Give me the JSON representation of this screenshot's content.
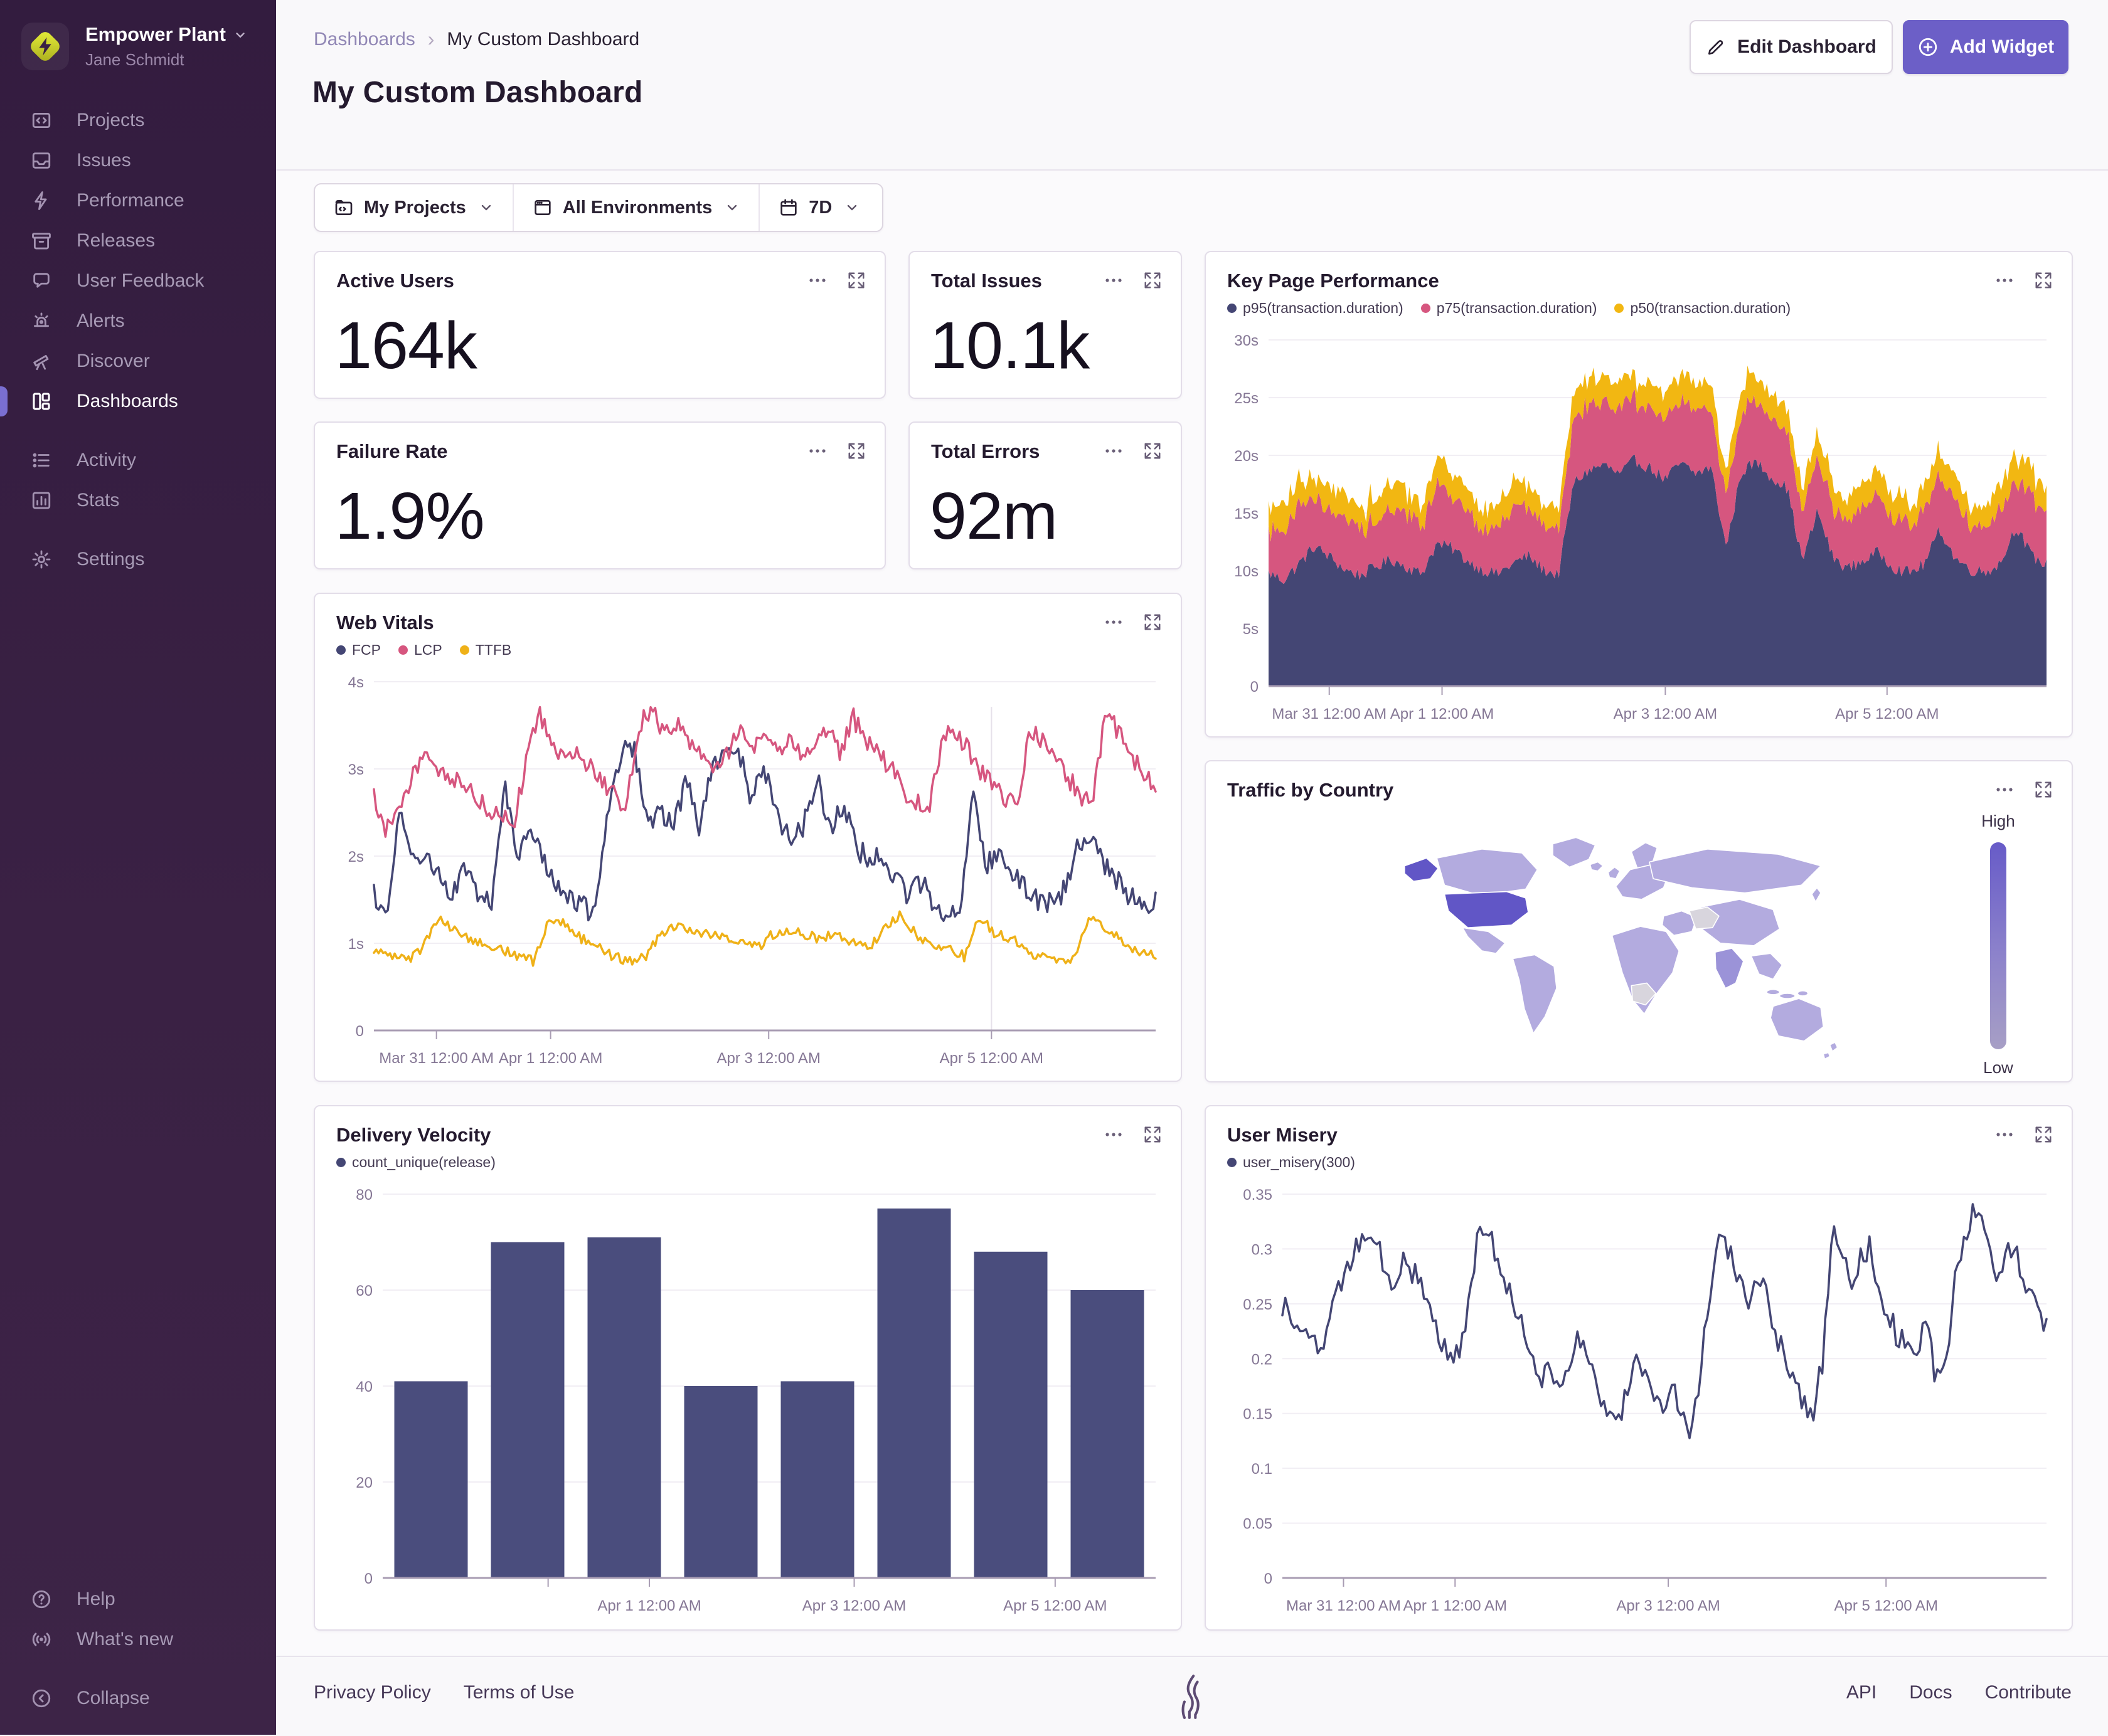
{
  "sidebar": {
    "org": "Empower Plant",
    "user": "Jane Schmidt",
    "primary": [
      {
        "id": "projects",
        "label": "Projects"
      },
      {
        "id": "issues",
        "label": "Issues"
      },
      {
        "id": "performance",
        "label": "Performance"
      },
      {
        "id": "releases",
        "label": "Releases"
      },
      {
        "id": "user-feedback",
        "label": "User Feedback"
      },
      {
        "id": "alerts",
        "label": "Alerts"
      },
      {
        "id": "discover",
        "label": "Discover"
      },
      {
        "id": "dashboards",
        "label": "Dashboards"
      }
    ],
    "secondary": [
      {
        "id": "activity",
        "label": "Activity"
      },
      {
        "id": "stats",
        "label": "Stats"
      }
    ],
    "tertiary": [
      {
        "id": "settings",
        "label": "Settings"
      }
    ],
    "footer": [
      {
        "id": "help",
        "label": "Help"
      },
      {
        "id": "whats-new",
        "label": "What's new"
      },
      {
        "id": "collapse",
        "label": "Collapse"
      }
    ]
  },
  "header": {
    "breadcrumb": [
      "Dashboards",
      "My Custom Dashboard"
    ],
    "title": "My Custom Dashboard",
    "edit_button": "Edit Dashboard",
    "add_button": "Add Widget"
  },
  "filters": {
    "projects": "My Projects",
    "environments": "All Environments",
    "period": "7D"
  },
  "cards": {
    "active_users": {
      "title": "Active Users",
      "value": "164k"
    },
    "total_issues": {
      "title": "Total Issues",
      "value": "10.1k"
    },
    "failure_rate": {
      "title": "Failure Rate",
      "value": "1.9%"
    },
    "total_errors": {
      "title": "Total Errors",
      "value": "92m"
    },
    "key_page_performance": {
      "title": "Key Page Performance"
    },
    "web_vitals": {
      "title": "Web Vitals"
    },
    "traffic_by_country": {
      "title": "Traffic by Country",
      "legend_high": "High",
      "legend_low": "Low"
    },
    "delivery_velocity": {
      "title": "Delivery Velocity"
    },
    "user_misery": {
      "title": "User Misery"
    }
  },
  "footer": {
    "left": [
      "Privacy Policy",
      "Terms of Use"
    ],
    "right": [
      "API",
      "Docs",
      "Contribute"
    ]
  },
  "colors": {
    "accent": "#6c5fc7",
    "series_navy": "#444674",
    "series_pink": "#d6567f",
    "series_yellow": "#efb118",
    "map_country": "#b3abdf",
    "map_country_high": "#6156c6",
    "map_no_data": "#d8d5dd"
  },
  "chart_data": [
    {
      "id": "key_page_performance",
      "type": "area",
      "stacked": true,
      "title": "Key Page Performance",
      "ylim": [
        0,
        30
      ],
      "grid": true,
      "legend_position": "top",
      "y_ticks": [
        {
          "v": 30,
          "label": "30s"
        },
        {
          "v": 25,
          "label": "25s"
        },
        {
          "v": 20,
          "label": "20s"
        },
        {
          "v": 15,
          "label": "15s"
        },
        {
          "v": 10,
          "label": "10s"
        },
        {
          "v": 5,
          "label": "5s"
        },
        {
          "v": 0,
          "label": "0"
        }
      ],
      "x_ticks": [
        {
          "pos": 0.078,
          "label": "Mar 31 12:00 AM"
        },
        {
          "pos": 0.223,
          "label": "Apr 1 12:00 AM"
        },
        {
          "pos": 0.51,
          "label": "Apr 3 12:00 AM"
        },
        {
          "pos": 0.795,
          "label": "Apr 5 12:00 AM"
        }
      ],
      "gutter": 70,
      "samples": 360,
      "series": [
        {
          "name": "p95(transaction.duration)",
          "color": "#444674",
          "jitter": 0.55,
          "values": [
            9.8,
            9.2,
            10.6,
            12.1,
            11.2,
            10.1,
            9.6,
            10.3,
            11.0,
            10.4,
            9.7,
            12.3,
            12.0,
            10.9,
            10.1,
            9.7,
            10.6,
            11.3,
            10.1,
            9.6,
            17.6,
            18.7,
            19.2,
            18.3,
            19.6,
            18.9,
            17.9,
            19.3,
            18.4,
            19.0,
            12.0,
            18.6,
            19.4,
            18.1,
            17.2,
            10.8,
            15.2,
            11.1,
            10.2,
            10.9,
            11.6,
            10.3,
            9.8,
            10.6,
            13.6,
            11.1,
            10.1,
            9.9,
            10.7,
            13.9,
            11.3,
            10.5
          ]
        },
        {
          "name": "p75(transaction.duration)",
          "color": "#d6567f",
          "jitter": 0.6,
          "values": [
            3.6,
            4.4,
            5.1,
            4.2,
            3.8,
            4.6,
            4.1,
            3.7,
            4.3,
            4.8,
            4.0,
            5.2,
            4.6,
            4.1,
            3.8,
            4.4,
            4.9,
            4.2,
            3.9,
            4.1,
            5.4,
            5.8,
            5.2,
            5.6,
            5.1,
            5.5,
            5.0,
            5.3,
            5.7,
            5.2,
            4.2,
            5.5,
            5.0,
            5.4,
            4.8,
            4.4,
            4.9,
            4.2,
            3.9,
            4.5,
            5.0,
            4.3,
            4.0,
            4.6,
            4.4,
            4.8,
            4.1,
            3.9,
            4.6,
            4.3,
            4.9,
            4.4
          ]
        },
        {
          "name": "p50(transaction.duration)",
          "color": "#f2b712",
          "jitter": 0.5,
          "values": [
            1.9,
            2.3,
            2.1,
            1.8,
            2.2,
            2.0,
            1.8,
            2.1,
            2.4,
            2.0,
            1.8,
            2.2,
            2.1,
            1.9,
            1.8,
            2.1,
            2.3,
            2.0,
            1.8,
            1.9,
            2.3,
            2.5,
            2.2,
            2.4,
            2.1,
            2.3,
            2.2,
            2.4,
            2.1,
            2.3,
            1.9,
            2.2,
            2.4,
            2.1,
            2.0,
            2.0,
            2.3,
            1.9,
            1.8,
            2.1,
            2.3,
            2.0,
            1.8,
            2.1,
            2.2,
            2.0,
            1.8,
            1.9,
            2.2,
            2.4,
            2.1,
            1.9
          ]
        }
      ]
    },
    {
      "id": "web_vitals",
      "type": "line",
      "title": "Web Vitals",
      "ylim": [
        0,
        4
      ],
      "grid": true,
      "crosshair": 0.79,
      "y_ticks": [
        {
          "v": 4,
          "label": "4s"
        },
        {
          "v": 3,
          "label": "3s"
        },
        {
          "v": 2,
          "label": "2s"
        },
        {
          "v": 1,
          "label": "1s"
        },
        {
          "v": 0,
          "label": "0"
        }
      ],
      "x_ticks": [
        {
          "pos": 0.08,
          "label": "Mar 31 12:00 AM"
        },
        {
          "pos": 0.226,
          "label": "Apr 1 12:00 AM"
        },
        {
          "pos": 0.505,
          "label": "Apr 3 12:00 AM"
        },
        {
          "pos": 0.79,
          "label": "Apr 5 12:00 AM"
        }
      ],
      "gutter": 64,
      "samples": 340,
      "series": [
        {
          "name": "FCP",
          "color": "#444674",
          "jitter": 0.13,
          "values": [
            1.55,
            1.35,
            2.55,
            1.9,
            2.05,
            1.75,
            1.6,
            1.85,
            1.55,
            1.45,
            2.85,
            2.05,
            2.25,
            1.95,
            1.7,
            1.5,
            1.42,
            1.35,
            2.6,
            3.2,
            3.18,
            2.4,
            2.5,
            2.35,
            2.9,
            2.3,
            3.1,
            3.18,
            3.2,
            2.65,
            3.0,
            2.45,
            2.2,
            2.35,
            2.9,
            2.25,
            2.6,
            2.1,
            1.95,
            2.05,
            1.75,
            1.55,
            1.7,
            1.45,
            1.35,
            1.4,
            2.8,
            1.9,
            2.1,
            1.8,
            1.62,
            1.5,
            1.45,
            1.6,
            2.1,
            2.3,
            1.9,
            1.72,
            1.55,
            1.45,
            1.5
          ]
        },
        {
          "name": "LCP",
          "color": "#d6567f",
          "jitter": 0.12,
          "values": [
            2.65,
            2.3,
            2.55,
            2.9,
            3.2,
            3.05,
            2.8,
            2.9,
            2.7,
            2.55,
            2.45,
            2.35,
            3.0,
            3.65,
            3.3,
            3.15,
            3.2,
            3.05,
            2.9,
            2.7,
            2.55,
            3.5,
            3.7,
            3.4,
            3.55,
            3.3,
            3.15,
            2.95,
            3.2,
            3.4,
            3.25,
            3.3,
            3.2,
            3.35,
            3.1,
            3.25,
            3.45,
            3.2,
            3.6,
            3.3,
            3.15,
            3.0,
            2.75,
            2.6,
            2.55,
            3.3,
            3.45,
            3.25,
            3.0,
            2.8,
            2.65,
            2.55,
            3.4,
            3.35,
            3.15,
            2.9,
            2.7,
            2.6,
            3.6,
            3.45,
            3.2,
            2.95,
            2.85
          ]
        },
        {
          "name": "TTFB",
          "color": "#efb118",
          "jitter": 0.06,
          "values": [
            0.95,
            0.85,
            0.8,
            0.95,
            1.3,
            1.15,
            1.05,
            1.0,
            0.92,
            0.85,
            0.8,
            1.3,
            1.22,
            1.05,
            0.95,
            0.85,
            0.8,
            0.85,
            1.1,
            1.2,
            1.15,
            1.1,
            1.05,
            1.0,
            0.95,
            1.1,
            1.15,
            1.1,
            1.05,
            1.1,
            1.0,
            0.95,
            1.15,
            1.35,
            1.1,
            1.0,
            0.95,
            0.85,
            1.3,
            1.1,
            1.05,
            0.9,
            0.85,
            0.8,
            0.85,
            1.35,
            1.15,
            1.0,
            0.9,
            0.85
          ]
        }
      ]
    },
    {
      "id": "delivery_velocity",
      "type": "bar",
      "title": "Delivery Velocity",
      "ylim": [
        0,
        80
      ],
      "grid": true,
      "bar_color": "#4a4d7d",
      "categories": [
        "",
        "",
        "",
        "",
        "",
        "",
        "",
        ""
      ],
      "values": [
        41,
        70,
        71,
        40,
        41,
        77,
        68,
        60
      ],
      "y_ticks": [
        {
          "v": 80,
          "label": "80"
        },
        {
          "v": 60,
          "label": "60"
        },
        {
          "v": 40,
          "label": "40"
        },
        {
          "v": 20,
          "label": "20"
        },
        {
          "v": 0,
          "label": "0"
        }
      ],
      "x_ticks": [
        {
          "pos": 0.214,
          "label": ""
        },
        {
          "pos": 0.345,
          "label": "Apr 1 12:00 AM"
        },
        {
          "pos": 0.61,
          "label": "Apr 3 12:00 AM"
        },
        {
          "pos": 0.87,
          "label": "Apr 5 12:00 AM"
        }
      ],
      "gutter": 78,
      "series": [
        {
          "name": "count_unique(release)",
          "color": "#444674"
        }
      ]
    },
    {
      "id": "user_misery",
      "type": "line",
      "title": "User Misery",
      "ylim": [
        0,
        0.35
      ],
      "grid": true,
      "y_ticks": [
        {
          "v": 0.35,
          "label": "0.35"
        },
        {
          "v": 0.3,
          "label": "0.3"
        },
        {
          "v": 0.25,
          "label": "0.25"
        },
        {
          "v": 0.2,
          "label": "0.2"
        },
        {
          "v": 0.15,
          "label": "0.15"
        },
        {
          "v": 0.1,
          "label": "0.1"
        },
        {
          "v": 0.05,
          "label": "0.05"
        },
        {
          "v": 0,
          "label": "0"
        }
      ],
      "x_ticks": [
        {
          "pos": 0.08,
          "label": "Mar 31 12:00 AM"
        },
        {
          "pos": 0.226,
          "label": "Apr 1 12:00 AM"
        },
        {
          "pos": 0.505,
          "label": "Apr 3 12:00 AM"
        },
        {
          "pos": 0.79,
          "label": "Apr 5 12:00 AM"
        }
      ],
      "gutter": 92,
      "samples": 260,
      "series": [
        {
          "name": "user_misery(300)",
          "color": "#444674",
          "jitter": 0.012,
          "values": [
            0.25,
            0.24,
            0.23,
            0.22,
            0.2,
            0.23,
            0.26,
            0.28,
            0.3,
            0.32,
            0.31,
            0.28,
            0.27,
            0.29,
            0.28,
            0.26,
            0.24,
            0.22,
            0.2,
            0.21,
            0.25,
            0.31,
            0.32,
            0.29,
            0.27,
            0.25,
            0.22,
            0.2,
            0.18,
            0.19,
            0.17,
            0.2,
            0.22,
            0.19,
            0.17,
            0.15,
            0.14,
            0.17,
            0.2,
            0.18,
            0.16,
            0.15,
            0.18,
            0.14,
            0.13,
            0.2,
            0.26,
            0.31,
            0.3,
            0.27,
            0.25,
            0.28,
            0.26,
            0.22,
            0.2,
            0.18,
            0.16,
            0.15,
            0.2,
            0.32,
            0.3,
            0.26,
            0.29,
            0.3,
            0.27,
            0.24,
            0.22,
            0.21,
            0.2,
            0.23,
            0.19,
            0.18,
            0.26,
            0.3,
            0.33,
            0.34,
            0.3,
            0.27,
            0.3,
            0.29,
            0.26,
            0.24,
            0.23
          ]
        }
      ]
    },
    {
      "id": "traffic_by_country",
      "type": "heatmap",
      "title": "Traffic by Country",
      "legend": {
        "high": "High",
        "low": "Low"
      },
      "notes": "choropleth world map; United States highest traffic"
    }
  ]
}
